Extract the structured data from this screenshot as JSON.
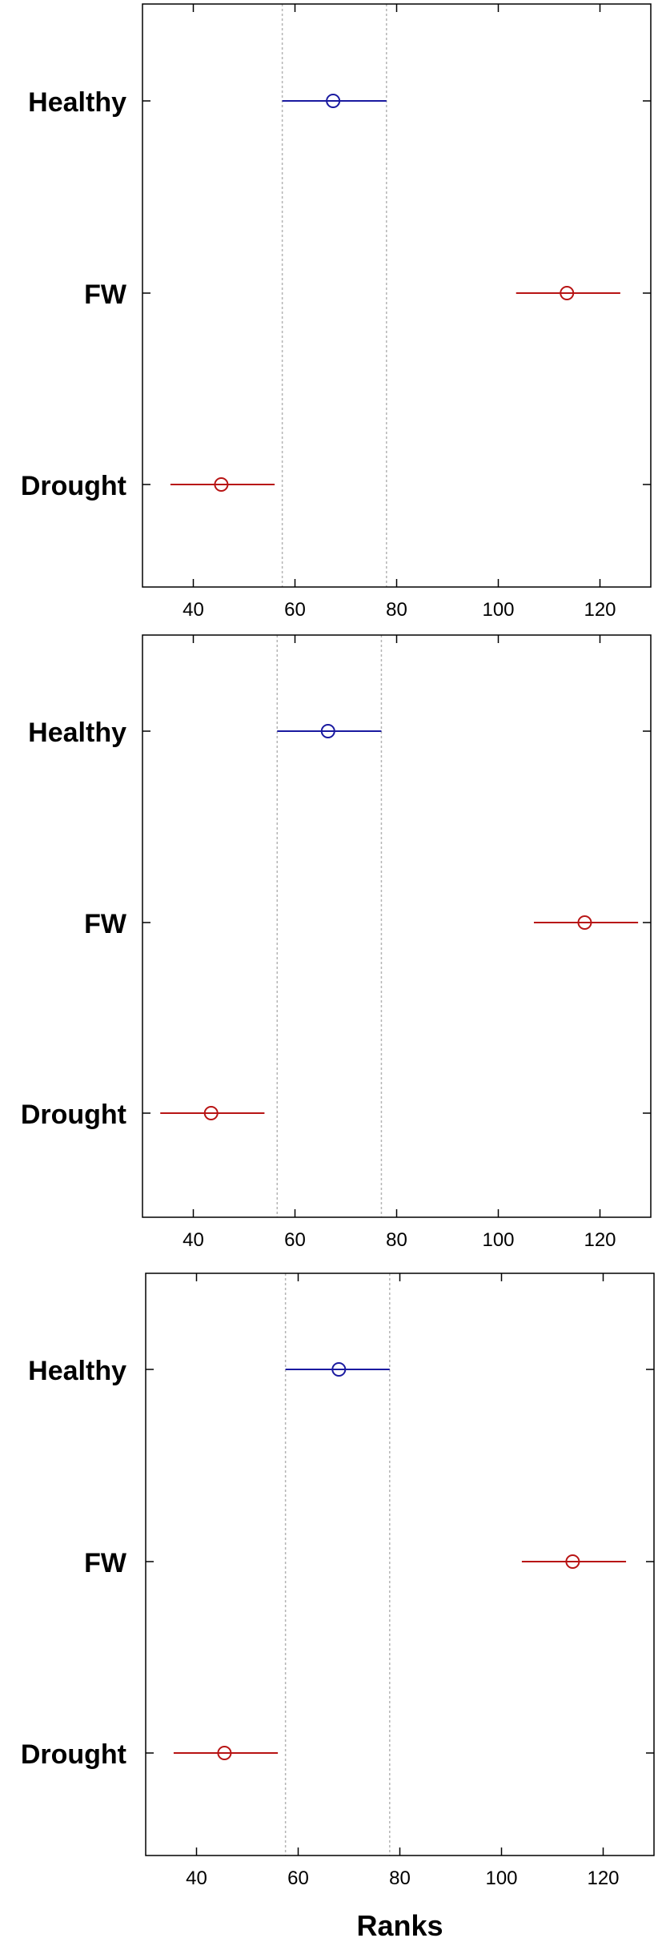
{
  "colors": {
    "control": "#1a1aa0",
    "significant": "#b81414",
    "guide": "#b4b4b4",
    "axis": "#000000"
  },
  "chart_data": [
    {
      "type": "scatter",
      "title": "",
      "xlabel": "",
      "ylabel": "",
      "xlim": [
        30,
        130
      ],
      "xticks": [
        "40",
        "60",
        "80",
        "100",
        "120"
      ],
      "guide_lines_x": [
        57.5,
        78
      ],
      "categories": [
        "Healthy",
        "FW",
        "Drought"
      ],
      "points": [
        {
          "category": "Healthy",
          "mean": 67.5,
          "lower": 57.5,
          "upper": 78,
          "color": "control"
        },
        {
          "category": "FW",
          "mean": 113.5,
          "lower": 103.5,
          "upper": 124,
          "color": "significant"
        },
        {
          "category": "Drought",
          "mean": 45.5,
          "lower": 35.5,
          "upper": 56,
          "color": "significant"
        }
      ]
    },
    {
      "type": "scatter",
      "title": "",
      "xlabel": "",
      "ylabel": "",
      "xlim": [
        30,
        130
      ],
      "xticks": [
        "40",
        "60",
        "80",
        "100",
        "120"
      ],
      "guide_lines_x": [
        56.5,
        77
      ],
      "categories": [
        "Healthy",
        "FW",
        "Drought"
      ],
      "points": [
        {
          "category": "Healthy",
          "mean": 66.5,
          "lower": 56.5,
          "upper": 77,
          "color": "control"
        },
        {
          "category": "FW",
          "mean": 117,
          "lower": 107,
          "upper": 127.5,
          "color": "significant"
        },
        {
          "category": "Drought",
          "mean": 43.5,
          "lower": 33.5,
          "upper": 54,
          "color": "significant"
        }
      ]
    },
    {
      "type": "scatter",
      "title": "",
      "xlabel": "Ranks",
      "ylabel": "",
      "xlim": [
        30,
        130
      ],
      "xticks": [
        "40",
        "60",
        "80",
        "100",
        "120"
      ],
      "guide_lines_x": [
        57.5,
        78
      ],
      "categories": [
        "Healthy",
        "FW",
        "Drought"
      ],
      "points": [
        {
          "category": "Healthy",
          "mean": 68,
          "lower": 57.5,
          "upper": 78,
          "color": "control"
        },
        {
          "category": "FW",
          "mean": 114,
          "lower": 104,
          "upper": 124.5,
          "color": "significant"
        },
        {
          "category": "Drought",
          "mean": 45.5,
          "lower": 35.5,
          "upper": 56,
          "color": "significant"
        }
      ]
    }
  ]
}
